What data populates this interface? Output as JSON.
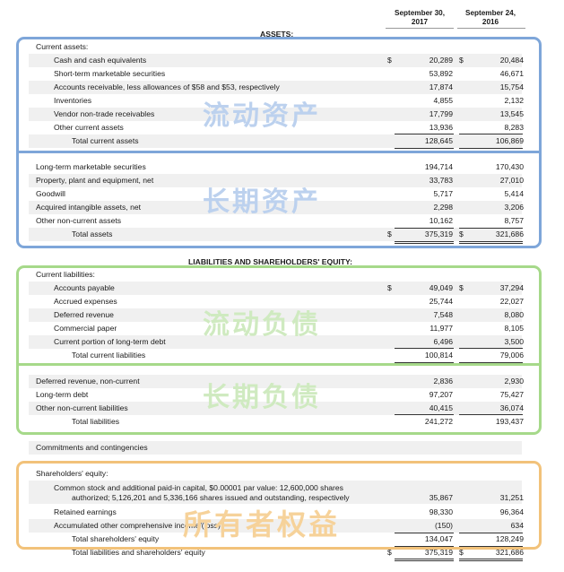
{
  "header": {
    "col1_line1": "September 30,",
    "col1_line2": "2017",
    "col2_line1": "September 24,",
    "col2_line2": "2016"
  },
  "sections": {
    "assets": "ASSETS:",
    "liabilities": "LIABILITIES AND SHAREHOLDERS' EQUITY:"
  },
  "rows": [
    {
      "label": "Current assets:",
      "v1": "",
      "v2": ""
    },
    {
      "label": "Cash and cash equivalents",
      "cur1": "$",
      "v1": "20,289",
      "cur2": "$",
      "v2": "20,484"
    },
    {
      "label": "Short-term marketable securities",
      "v1": "53,892",
      "v2": "46,671"
    },
    {
      "label": "Accounts receivable, less allowances of $58 and $53, respectively",
      "v1": "17,874",
      "v2": "15,754"
    },
    {
      "label": "Inventories",
      "v1": "4,855",
      "v2": "2,132"
    },
    {
      "label": "Vendor non-trade receivables",
      "v1": "17,799",
      "v2": "13,545"
    },
    {
      "label": "Other current assets",
      "v1": "13,936",
      "v2": "8,283"
    },
    {
      "label": "Total current assets",
      "v1": "128,645",
      "v2": "106,869"
    },
    {
      "label": "Long-term marketable securities",
      "v1": "194,714",
      "v2": "170,430"
    },
    {
      "label": "Property, plant and equipment, net",
      "v1": "33,783",
      "v2": "27,010"
    },
    {
      "label": "Goodwill",
      "v1": "5,717",
      "v2": "5,414"
    },
    {
      "label": "Acquired intangible assets, net",
      "v1": "2,298",
      "v2": "3,206"
    },
    {
      "label": "Other non-current assets",
      "v1": "10,162",
      "v2": "8,757"
    },
    {
      "label": "Total assets",
      "cur1": "$",
      "v1": "375,319",
      "cur2": "$",
      "v2": "321,686"
    },
    {
      "label": "Current liabilities:",
      "v1": "",
      "v2": ""
    },
    {
      "label": "Accounts payable",
      "cur1": "$",
      "v1": "49,049",
      "cur2": "$",
      "v2": "37,294"
    },
    {
      "label": "Accrued expenses",
      "v1": "25,744",
      "v2": "22,027"
    },
    {
      "label": "Deferred revenue",
      "v1": "7,548",
      "v2": "8,080"
    },
    {
      "label": "Commercial paper",
      "v1": "11,977",
      "v2": "8,105"
    },
    {
      "label": "Current portion of long-term debt",
      "v1": "6,496",
      "v2": "3,500"
    },
    {
      "label": "Total current liabilities",
      "v1": "100,814",
      "v2": "79,006"
    },
    {
      "label": "Deferred revenue, non-current",
      "v1": "2,836",
      "v2": "2,930"
    },
    {
      "label": "Long-term debt",
      "v1": "97,207",
      "v2": "75,427"
    },
    {
      "label": "Other non-current liabilities",
      "v1": "40,415",
      "v2": "36,074"
    },
    {
      "label": "Total liabilities",
      "v1": "241,272",
      "v2": "193,437"
    },
    {
      "label": "Commitments and contingencies",
      "v1": "",
      "v2": ""
    },
    {
      "label": "Shareholders' equity:",
      "v1": "",
      "v2": ""
    },
    {
      "label": "Common stock and additional paid-in capital, $0.00001 par value: 12,600,000 shares",
      "v1": "",
      "v2": ""
    },
    {
      "label": "authorized; 5,126,201 and 5,336,166 shares issued and outstanding, respectively",
      "v1": "35,867",
      "v2": "31,251"
    },
    {
      "label": "Retained earnings",
      "v1": "98,330",
      "v2": "96,364"
    },
    {
      "label": "Accumulated other comprehensive income/(loss)",
      "v1": "(150)",
      "v2": "634"
    },
    {
      "label": "Total shareholders' equity",
      "v1": "134,047",
      "v2": "128,249"
    },
    {
      "label": "Total liabilities and shareholders' equity",
      "cur1": "$",
      "v1": "375,319",
      "cur2": "$",
      "v2": "321,686"
    }
  ],
  "annotations": {
    "current_assets": "流动资产",
    "noncurrent_assets": "长期资产",
    "current_liabilities": "流动负债",
    "noncurrent_liabilities": "长期负债",
    "equity": "所有者权益"
  },
  "colors": {
    "blue": "#7ea6d9",
    "green": "#a6d98a",
    "orange": "#f2c27a",
    "blue_text": "#bcd1ee",
    "green_text": "#cfeac0",
    "orange_text": "#f6d29a"
  }
}
